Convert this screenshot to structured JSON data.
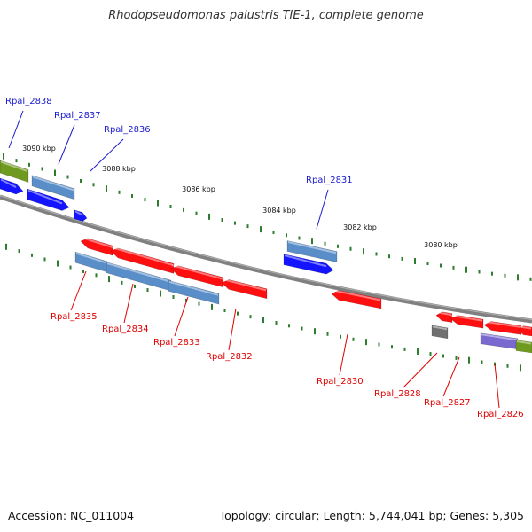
{
  "title": "Rhodopseudomonas palustris TIE-1, complete genome",
  "footer": {
    "accession": "Accession: NC_011004",
    "info": "Topology: circular; Length: 5,744,041 bp; Genes: 5,305"
  },
  "colors": {
    "backbone": "#808080",
    "tick": "#2e7d2e",
    "label_top": "#1a1ad0",
    "label_bottom": "#e00000",
    "red": "#ff1010",
    "blue": "#1414ff",
    "steel": "#5a8ec8",
    "olive": "#6f9a20",
    "purple": "#7a6ad0",
    "gray": "#707070"
  },
  "ticks": [
    "3090 kbp",
    "3088 kbp",
    "3086 kbp",
    "3084 kbp",
    "3082 kbp",
    "3080 kbp"
  ],
  "genes_top": [
    "Rpal_2838",
    "Rpal_2837",
    "Rpal_2836",
    "Rpal_2831"
  ],
  "genes_bottom": [
    "Rpal_2835",
    "Rpal_2834",
    "Rpal_2833",
    "Rpal_2832",
    "Rpal_2830",
    "Rpal_2828",
    "Rpal_2827",
    "Rpal_2826"
  ]
}
